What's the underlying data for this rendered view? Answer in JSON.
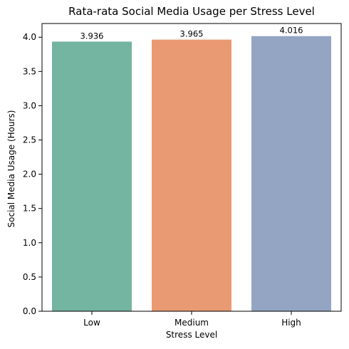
{
  "chart_data": {
    "type": "bar",
    "title": "Rata-rata Social Media Usage per Stress Level",
    "xlabel": "Stress Level",
    "ylabel": "Social Media Usage (Hours)",
    "categories": [
      "Low",
      "Medium",
      "High"
    ],
    "values": [
      3.936,
      3.965,
      4.016
    ],
    "value_labels": [
      "3.936",
      "3.965",
      "4.016"
    ],
    "colors": [
      "#73b5a0",
      "#e99a73",
      "#94a4c3"
    ],
    "ylim": [
      0,
      4.2
    ],
    "yticks": [
      0.0,
      0.5,
      1.0,
      1.5,
      2.0,
      2.5,
      3.0,
      3.5,
      4.0
    ],
    "ytick_labels": [
      "0.0",
      "0.5",
      "1.0",
      "1.5",
      "2.0",
      "2.5",
      "3.0",
      "3.5",
      "4.0"
    ],
    "grid": false,
    "legend": false
  }
}
